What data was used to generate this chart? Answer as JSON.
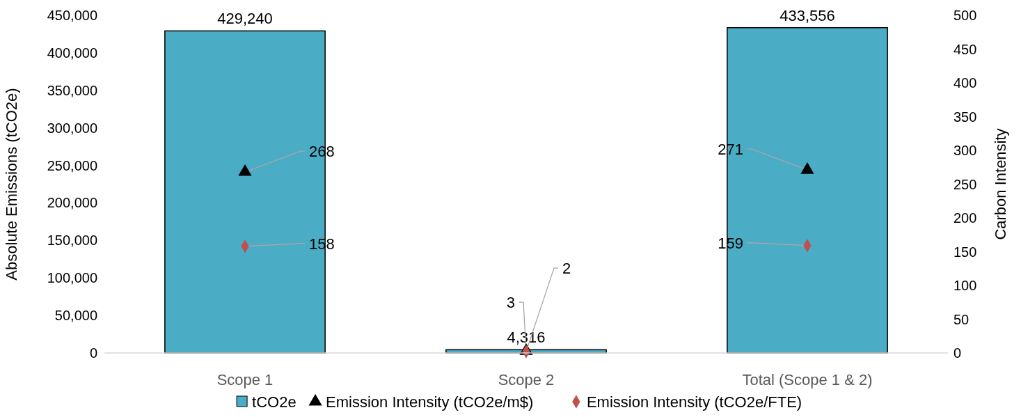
{
  "chart_data": {
    "type": "bar",
    "categories": [
      "Scope 1",
      "Scope 2",
      "Total (Scope 1 & 2)"
    ],
    "ylabel": "Absolute Emissions (tCO2e)",
    "y2label": "Carbon Intensity",
    "ylim": [
      0,
      450000
    ],
    "yticks": [
      0,
      {
        "value": 50000,
        "label": "50,000"
      },
      {
        "value": 100000,
        "label": "100,000"
      },
      {
        "value": 150000,
        "label": "150,000"
      },
      {
        "value": 200000,
        "label": "200,000"
      },
      {
        "value": 250000,
        "label": "250,000"
      },
      {
        "value": 300000,
        "label": "300,000"
      },
      {
        "value": 350000,
        "label": "350,000"
      },
      {
        "value": 400000,
        "label": "400,000"
      },
      {
        "value": 450000,
        "label": "450,000"
      }
    ],
    "y2lim": [
      0,
      500
    ],
    "y2ticks": [
      0,
      50,
      100,
      150,
      200,
      250,
      300,
      350,
      400,
      450,
      500
    ],
    "grid": false,
    "legend": "bottom",
    "series": [
      {
        "name": "tCO2e",
        "color": "#4bacc6",
        "values": [
          429240,
          4316,
          433556
        ],
        "value_labels": [
          "429,240",
          "4,316",
          "433,556"
        ]
      },
      {
        "name": "Emission Intensity (tCO2e/m$)",
        "type": "scatter",
        "axis": "y2",
        "marker": "triangle",
        "color": "#000000",
        "values": [
          268,
          3,
          271
        ],
        "value_labels": [
          "268",
          "3",
          "271"
        ]
      },
      {
        "name": "Emission Intensity (tCO2e/FTE)",
        "type": "scatter",
        "axis": "y2",
        "marker": "diamond",
        "color": "#c0504d",
        "values": [
          158,
          2,
          159
        ],
        "value_labels": [
          "158",
          "2",
          "159"
        ]
      }
    ]
  }
}
